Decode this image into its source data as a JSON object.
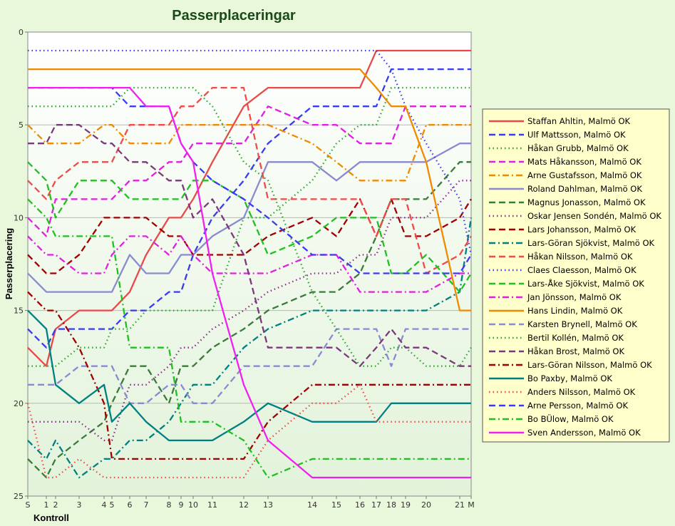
{
  "chart_data": {
    "type": "line",
    "title": "Passerplaceringar",
    "xlabel": "Kontroll",
    "ylabel": "Passerplacering",
    "ylim": [
      0,
      25
    ],
    "y_reversed": true,
    "y_ticks": [
      0,
      5,
      10,
      15,
      20,
      25
    ],
    "grid": true,
    "legend_position": "right",
    "categories": [
      "S",
      "1",
      "2",
      "3",
      "4",
      "5",
      "6",
      "7",
      "8",
      "9",
      "10",
      "11",
      "12",
      "13",
      "14",
      "15",
      "16",
      "17",
      "18",
      "19",
      "20",
      "21",
      "M"
    ],
    "series": [
      {
        "name": "Staffan Ahltin, Malmö OK",
        "color": "#e84a4a",
        "dash": "solid",
        "values": [
          17,
          18,
          16,
          15,
          15,
          15,
          14,
          12,
          10,
          10,
          9,
          7,
          4,
          3,
          3,
          3,
          3,
          1,
          1,
          1,
          1,
          1,
          1
        ]
      },
      {
        "name": "Ulf Mattsson, Malmö OK",
        "color": "#3a3af0",
        "dash": "dash",
        "values": [
          16,
          17,
          16,
          16,
          16,
          16,
          15,
          15,
          14,
          14,
          12,
          10,
          8,
          6,
          4,
          4,
          4,
          4,
          2,
          2,
          2,
          2,
          2
        ]
      },
      {
        "name": "Håkan Grubb, Malmö OK",
        "color": "#2aa52a",
        "dash": "dot",
        "values": [
          18,
          18,
          18,
          17,
          17,
          16,
          16,
          15,
          15,
          15,
          15,
          15,
          10,
          10,
          8,
          6,
          5,
          5,
          3,
          3,
          3,
          3,
          3
        ]
      },
      {
        "name": "Mats Håkansson, Malmö OK",
        "color": "#e020e0",
        "dash": "dash",
        "values": [
          10,
          11,
          9,
          9,
          9,
          9,
          8,
          8,
          7,
          7,
          6,
          6,
          6,
          4,
          5,
          5,
          6,
          6,
          6,
          4,
          4,
          4,
          4
        ]
      },
      {
        "name": "Arne Gustafsson, Malmö OK",
        "color": "#f08a00",
        "dash": "dashdot",
        "values": [
          5,
          6,
          6,
          6,
          5,
          5,
          6,
          6,
          6,
          5,
          5,
          5,
          5,
          5,
          6,
          7,
          8,
          8,
          8,
          8,
          5,
          5,
          5
        ]
      },
      {
        "name": "Roland Dahlman, Malmö OK",
        "color": "#8a8ad0",
        "dash": "solid",
        "values": [
          13,
          14,
          14,
          14,
          14,
          14,
          12,
          13,
          13,
          12,
          12,
          11,
          10,
          7,
          7,
          8,
          7,
          7,
          7,
          7,
          7,
          6,
          6
        ]
      },
      {
        "name": "Magnus Jonasson, Malmö OK",
        "color": "#3a7a3a",
        "dash": "dash",
        "values": [
          23,
          24,
          23,
          22,
          21,
          20,
          18,
          18,
          20,
          18,
          18,
          17,
          16,
          15,
          14,
          14,
          13,
          11,
          9,
          9,
          9,
          7,
          7
        ]
      },
      {
        "name": "Oskar Jensen Sondén, Malmö OK",
        "color": "#8a2a8a",
        "dash": "dot",
        "values": [
          21,
          21,
          21,
          21,
          22,
          22,
          19,
          19,
          18,
          17,
          17,
          16,
          15,
          14,
          13,
          13,
          12,
          12,
          10,
          10,
          10,
          8,
          8
        ]
      },
      {
        "name": "Lars Johansson, Malmö OK",
        "color": "#a00000",
        "dash": "dash",
        "values": [
          12,
          13,
          13,
          12,
          10,
          10,
          10,
          10,
          11,
          11,
          12,
          12,
          12,
          11,
          10,
          11,
          9,
          11,
          9,
          11,
          11,
          10,
          9
        ]
      },
      {
        "name": "Lars-Göran Sjökvist, Malmö OK",
        "color": "#008080",
        "dash": "dashdot",
        "values": [
          22,
          23,
          22,
          24,
          23,
          23,
          22,
          22,
          21,
          20,
          19,
          19,
          17,
          16,
          15,
          15,
          15,
          15,
          15,
          15,
          15,
          14,
          10
        ]
      },
      {
        "name": "Håkan Nilsson, Malmö OK",
        "color": "#f04a4a",
        "dash": "dash",
        "values": [
          8,
          9,
          8,
          7,
          7,
          7,
          5,
          5,
          5,
          4,
          4,
          3,
          3,
          9,
          9,
          9,
          9,
          11,
          9,
          9,
          13,
          12,
          11
        ]
      },
      {
        "name": "Claes Claesson, Malmö OK",
        "color": "#3a3af0",
        "dash": "dot",
        "values": [
          1,
          1,
          1,
          1,
          1,
          1,
          1,
          1,
          1,
          1,
          1,
          1,
          1,
          1,
          1,
          1,
          1,
          1,
          2,
          4,
          6,
          9,
          12
        ]
      },
      {
        "name": "Lars-Åke Sjökvist, Malmö OK",
        "color": "#20c020",
        "dash": "dash",
        "values": [
          7,
          8,
          10,
          8,
          8,
          8,
          9,
          9,
          9,
          9,
          8,
          8,
          9,
          12,
          11,
          10,
          10,
          10,
          13,
          13,
          12,
          14,
          13
        ]
      },
      {
        "name": "Jan Jönsson, Malmö OK",
        "color": "#e020e0",
        "dash": "dashdot",
        "values": [
          11,
          12,
          12,
          13,
          13,
          12,
          11,
          11,
          12,
          11,
          12,
          13,
          13,
          13,
          12,
          12,
          14,
          14,
          14,
          14,
          14,
          13,
          13
        ]
      },
      {
        "name": "Hans Lindin, Malmö OK",
        "color": "#f08a00",
        "dash": "solid",
        "values": [
          2,
          2,
          2,
          2,
          2,
          2,
          2,
          2,
          2,
          2,
          2,
          2,
          2,
          2,
          2,
          2,
          2,
          3,
          4,
          4,
          7,
          15,
          15
        ]
      },
      {
        "name": "Karsten Brynell, Malmö OK",
        "color": "#8a8ad0",
        "dash": "dash",
        "values": [
          19,
          19,
          19,
          18,
          18,
          18,
          20,
          20,
          19,
          19,
          20,
          20,
          18,
          18,
          18,
          16,
          16,
          16,
          18,
          16,
          16,
          16,
          16
        ]
      },
      {
        "name": "Bertil Kollén, Malmö OK",
        "color": "#2aa52a",
        "dash": "dot",
        "values": [
          4,
          4,
          4,
          4,
          4,
          4,
          3,
          3,
          3,
          3,
          3,
          4,
          7,
          8,
          14,
          16,
          18,
          18,
          17,
          17,
          18,
          18,
          17
        ]
      },
      {
        "name": "Håkan Brost, Malmö OK",
        "color": "#7a3a7a",
        "dash": "dash",
        "values": [
          6,
          6,
          5,
          5,
          6,
          6,
          7,
          7,
          8,
          8,
          10,
          9,
          12,
          17,
          17,
          17,
          18,
          17,
          16,
          17,
          17,
          18,
          18
        ]
      },
      {
        "name": "Lars-Göran Nilsson, Malmö OK",
        "color": "#a00000",
        "dash": "dashdot",
        "values": [
          14,
          15,
          15,
          17,
          20,
          23,
          23,
          23,
          23,
          23,
          23,
          23,
          23,
          21,
          19,
          19,
          19,
          19,
          19,
          19,
          19,
          19,
          19
        ]
      },
      {
        "name": "Bo Paxby, Malmö OK",
        "color": "#008080",
        "dash": "solid",
        "values": [
          15,
          16,
          19,
          20,
          19,
          21,
          20,
          21,
          22,
          22,
          22,
          22,
          21,
          20,
          21,
          21,
          21,
          21,
          20,
          20,
          20,
          20,
          20
        ]
      },
      {
        "name": "Anders Nilsson, Malmö OK",
        "color": "#f04a4a",
        "dash": "dot",
        "values": [
          20,
          24,
          24,
          23,
          24,
          24,
          24,
          24,
          24,
          24,
          24,
          24,
          24,
          22,
          20,
          20,
          19,
          21,
          21,
          21,
          21,
          21,
          21
        ]
      },
      {
        "name": "Arne Persson, Malmö OK",
        "color": "#3a3af0",
        "dash": "dash",
        "values": [
          3,
          3,
          3,
          3,
          3,
          3,
          4,
          4,
          4,
          6,
          7,
          8,
          9,
          10,
          12,
          12,
          13,
          13,
          13,
          13,
          13,
          13,
          12
        ]
      },
      {
        "name": "Bo BÜlow, Malmö OK",
        "color": "#20c020",
        "dash": "dashdot",
        "values": [
          9,
          10,
          11,
          11,
          11,
          11,
          17,
          17,
          17,
          21,
          21,
          21,
          22,
          24,
          23,
          23,
          23,
          23,
          23,
          23,
          23,
          23,
          23
        ]
      },
      {
        "name": "Sven Andersson, Malmö OK",
        "color": "#f020f0",
        "dash": "solid",
        "values": [
          3,
          3,
          3,
          3,
          3,
          3,
          3,
          4,
          4,
          6,
          7,
          13,
          19,
          22,
          24,
          24,
          24,
          24,
          24,
          24,
          24,
          24,
          24
        ]
      }
    ]
  }
}
